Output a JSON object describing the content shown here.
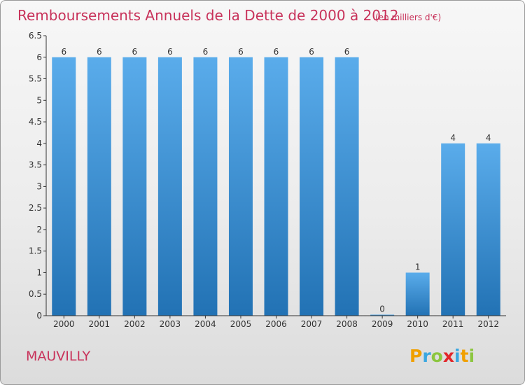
{
  "header": {
    "title": "Remboursements Annuels de la Dette de 2000 à 2012",
    "unit": "(en milliers d'€)"
  },
  "footer": {
    "commune": "MAUVILLY",
    "logo": "Proxiti"
  },
  "colors": {
    "title": "#c8325a",
    "bar_top": "#5aaceb",
    "bar_bottom": "#2272b4",
    "axis": "#333333",
    "gridline": "#d9d9d9"
  },
  "chart_data": {
    "type": "bar",
    "title": "Remboursements Annuels de la Dette de 2000 à 2012",
    "subtitle": "(en milliers d'€)",
    "categories": [
      "2000",
      "2001",
      "2002",
      "2003",
      "2004",
      "2005",
      "2006",
      "2007",
      "2008",
      "2009",
      "2010",
      "2011",
      "2012"
    ],
    "values": [
      6,
      6,
      6,
      6,
      6,
      6,
      6,
      6,
      6,
      0,
      1,
      4,
      4
    ],
    "value_labels": [
      "6",
      "6",
      "6",
      "6",
      "6",
      "6",
      "6",
      "6",
      "6",
      "0",
      "1",
      "4",
      "4"
    ],
    "ylim": [
      0,
      6.5
    ],
    "yticks": [
      "0",
      "0.5",
      "1",
      "1.5",
      "2",
      "2.5",
      "3",
      "3.5",
      "4",
      "4.5",
      "5",
      "5.5",
      "6",
      "6.5"
    ],
    "ytick_values": [
      0,
      0.5,
      1,
      1.5,
      2,
      2.5,
      3,
      3.5,
      4,
      4.5,
      5,
      5.5,
      6,
      6.5
    ],
    "grid": false,
    "legend": "none"
  }
}
